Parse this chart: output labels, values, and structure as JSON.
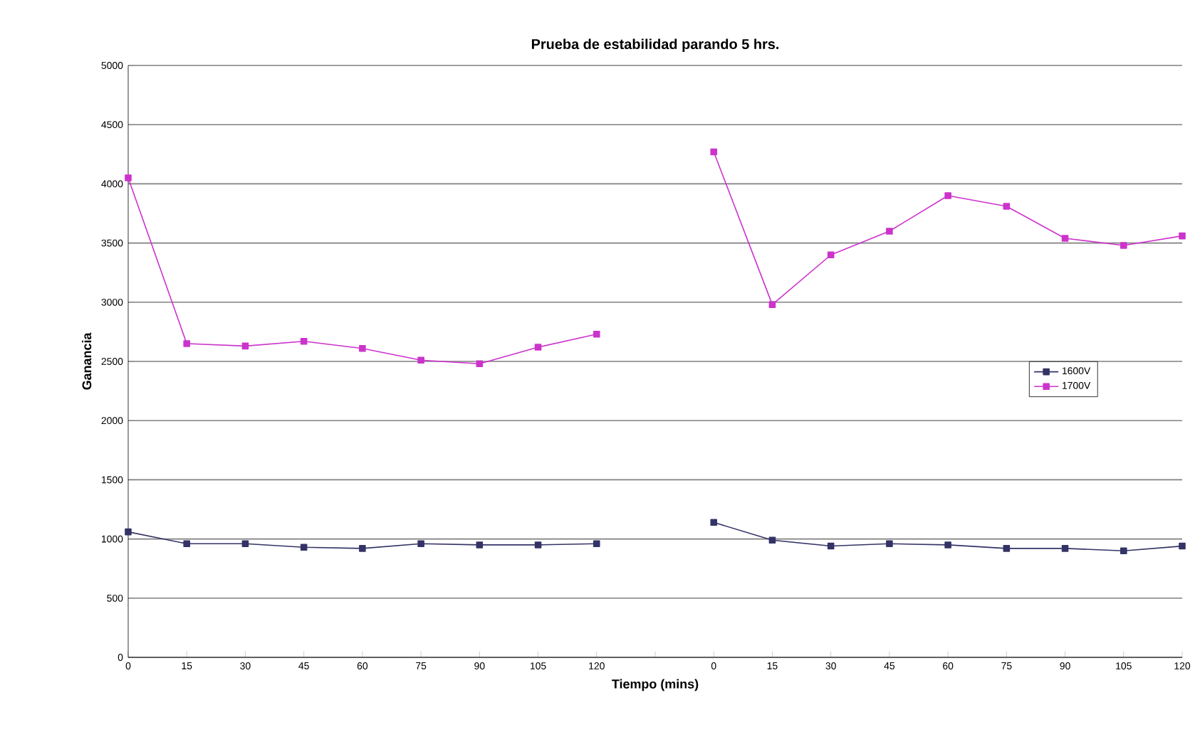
{
  "chart_data": {
    "type": "line",
    "title": "Prueba de estabilidad parando 5 hrs.",
    "xlabel": "Tiempo (mins)",
    "ylabel": "Ganancia",
    "categories": [
      "0",
      "15",
      "30",
      "45",
      "60",
      "75",
      "90",
      "105",
      "120",
      null,
      "0",
      "15",
      "30",
      "45",
      "60",
      "75",
      "90",
      "105",
      "120"
    ],
    "series": [
      {
        "name": "1600V",
        "color": "#333366",
        "values": [
          1060,
          960,
          960,
          930,
          920,
          960,
          950,
          950,
          960,
          null,
          1140,
          990,
          940,
          960,
          950,
          920,
          920,
          900,
          940
        ]
      },
      {
        "name": "1700V",
        "color": "#cc33cc",
        "values": [
          4050,
          2650,
          2630,
          2670,
          2610,
          2510,
          2480,
          2620,
          2730,
          null,
          4270,
          2980,
          3400,
          3600,
          3900,
          3810,
          3540,
          3480,
          3560
        ]
      }
    ],
    "ylim": [
      0,
      5000
    ],
    "yticks": [
      0,
      500,
      1000,
      1500,
      2000,
      2500,
      3000,
      3500,
      4000,
      4500,
      5000
    ],
    "grid": "y",
    "legend": "right",
    "marker": "square",
    "line_style": "solid"
  }
}
